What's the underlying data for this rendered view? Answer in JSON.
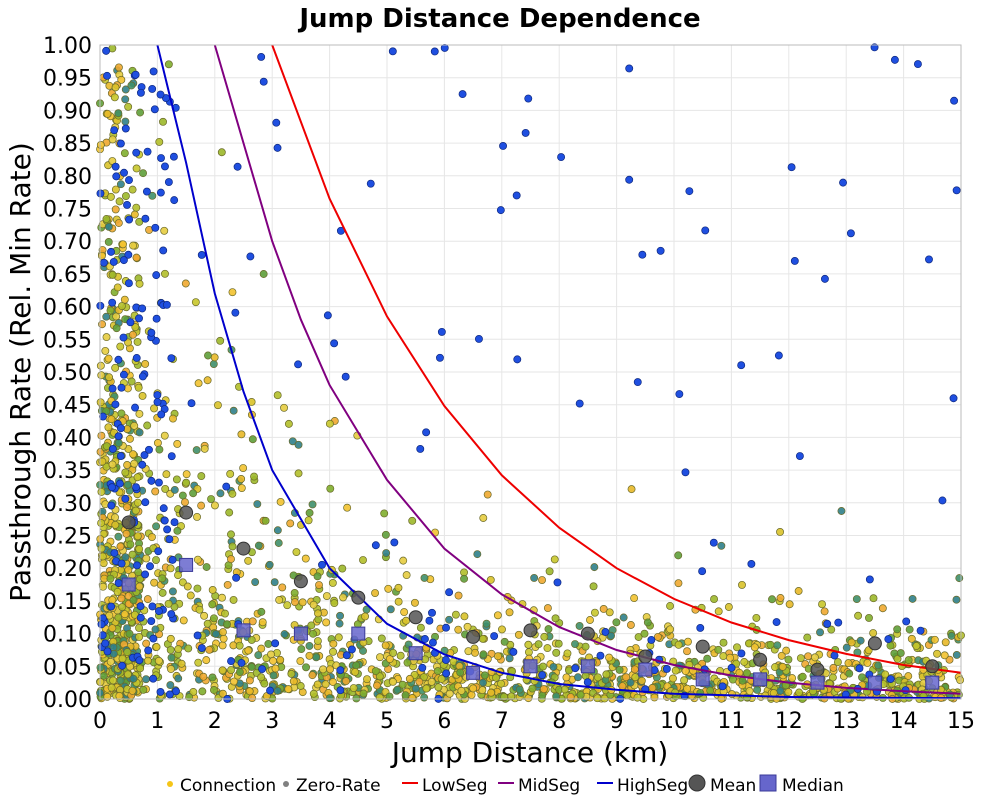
{
  "chart_data": {
    "type": "scatter",
    "title": "Jump Distance Dependence",
    "xlabel": "Jump Distance (km)",
    "ylabel": "Passthrough Rate (Rel. Min Rate)",
    "xlim": [
      0,
      15
    ],
    "ylim": [
      0,
      1
    ],
    "xticks": [
      "0",
      "1",
      "2",
      "3",
      "4",
      "5",
      "6",
      "7",
      "8",
      "9",
      "10",
      "11",
      "12",
      "13",
      "14",
      "15"
    ],
    "yticks": [
      "0.00",
      "0.05",
      "0.10",
      "0.15",
      "0.20",
      "0.25",
      "0.30",
      "0.35",
      "0.40",
      "0.45",
      "0.50",
      "0.55",
      "0.60",
      "0.65",
      "0.70",
      "0.75",
      "0.80",
      "0.85",
      "0.90",
      "0.95",
      "1.00"
    ],
    "grid": true,
    "legend_position": "bottom",
    "legend": [
      "Connection",
      "Zero-Rate",
      "LowSeg",
      "MidSeg",
      "HighSeg",
      "Mean",
      "Median"
    ],
    "curves": [
      {
        "name": "LowSeg",
        "color": "#ee0000",
        "points": [
          [
            3.0,
            1.0
          ],
          [
            4,
            0.765
          ],
          [
            5,
            0.585
          ],
          [
            6,
            0.448
          ],
          [
            7,
            0.342
          ],
          [
            8,
            0.262
          ],
          [
            9,
            0.2
          ],
          [
            10,
            0.153
          ],
          [
            11,
            0.117
          ],
          [
            12,
            0.09
          ],
          [
            13,
            0.069
          ],
          [
            14,
            0.052
          ],
          [
            15,
            0.04
          ]
        ]
      },
      {
        "name": "MidSeg",
        "color": "#800080",
        "points": [
          [
            2.0,
            1.0
          ],
          [
            2.5,
            0.85
          ],
          [
            3,
            0.7
          ],
          [
            3.5,
            0.58
          ],
          [
            4,
            0.48
          ],
          [
            5,
            0.335
          ],
          [
            6,
            0.23
          ],
          [
            7,
            0.16
          ],
          [
            8,
            0.11
          ],
          [
            9,
            0.075
          ],
          [
            10,
            0.052
          ],
          [
            11,
            0.036
          ],
          [
            12,
            0.025
          ],
          [
            13,
            0.017
          ],
          [
            14,
            0.012
          ],
          [
            15,
            0.008
          ]
        ]
      },
      {
        "name": "HighSeg",
        "color": "#0000cc",
        "points": [
          [
            1.0,
            1.0
          ],
          [
            1.5,
            0.82
          ],
          [
            2,
            0.62
          ],
          [
            2.5,
            0.47
          ],
          [
            3,
            0.35
          ],
          [
            4,
            0.2
          ],
          [
            5,
            0.115
          ],
          [
            6,
            0.068
          ],
          [
            7,
            0.04
          ],
          [
            8,
            0.023
          ],
          [
            9,
            0.014
          ],
          [
            10,
            0.008
          ],
          [
            12,
            0.003
          ],
          [
            15,
            0.001
          ]
        ]
      }
    ],
    "mean": {
      "x": [
        0.5,
        1.5,
        2.5,
        3.5,
        4.5,
        5.5,
        6.5,
        7.5,
        8.5,
        9.5,
        10.5,
        11.5,
        12.5,
        13.5,
        14.5
      ],
      "y": [
        0.27,
        0.285,
        0.23,
        0.18,
        0.155,
        0.125,
        0.095,
        0.105,
        0.1,
        0.065,
        0.08,
        0.06,
        0.045,
        0.085,
        0.05
      ]
    },
    "median": {
      "x": [
        0.5,
        1.5,
        2.5,
        3.5,
        4.5,
        5.5,
        6.5,
        7.5,
        8.5,
        9.5,
        10.5,
        11.5,
        12.5,
        13.5,
        14.5
      ],
      "y": [
        0.175,
        0.205,
        0.105,
        0.1,
        0.1,
        0.07,
        0.04,
        0.05,
        0.05,
        0.045,
        0.03,
        0.03,
        0.025,
        0.025,
        0.025
      ]
    },
    "colors": {
      "connection": "#f5c518",
      "zero_rate": "#808080",
      "low": "#ee0000",
      "mid": "#800080",
      "high": "#0000cc",
      "mean": "#555555",
      "median": "#6666cc",
      "blue_points": "#1f4fe0"
    }
  }
}
